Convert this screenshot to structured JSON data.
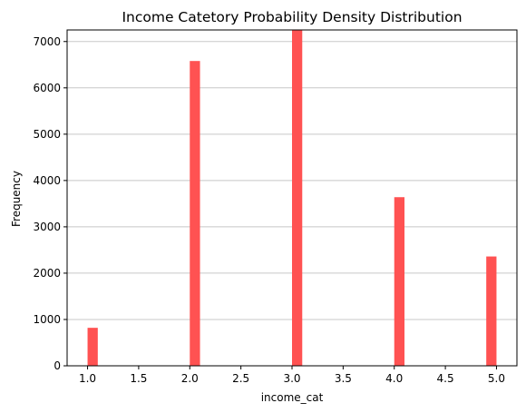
{
  "chart_data": {
    "type": "bar",
    "title": "Income Catetory Probability Density Distribution",
    "xlabel": "income_cat",
    "ylabel": "Frequency",
    "xlim": [
      0.8,
      5.2
    ],
    "ylim": [
      0,
      7250
    ],
    "xticks": [
      "1.0",
      "1.5",
      "2.0",
      "2.5",
      "3.0",
      "3.5",
      "4.0",
      "4.5",
      "5.0"
    ],
    "yticks": [
      "0",
      "1000",
      "2000",
      "3000",
      "4000",
      "5000",
      "6000",
      "7000"
    ],
    "bin_width": 0.1,
    "bars": [
      {
        "x_start": 1.0,
        "x_end": 1.1,
        "value": 820
      },
      {
        "x_start": 2.0,
        "x_end": 2.1,
        "value": 6580
      },
      {
        "x_start": 3.0,
        "x_end": 3.1,
        "value": 7240
      },
      {
        "x_start": 4.0,
        "x_end": 4.1,
        "value": 3640
      },
      {
        "x_start": 4.9,
        "x_end": 5.0,
        "value": 2360
      }
    ],
    "grid": "horizontal",
    "bar_color": "#ff5252",
    "grid_color": "#c8c8c8"
  }
}
